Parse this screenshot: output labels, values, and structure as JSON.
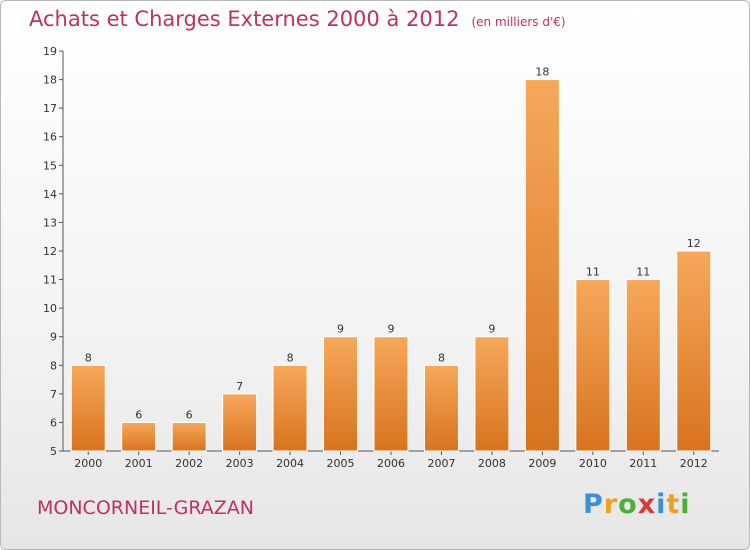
{
  "title": "Achats et Charges Externes 2000 à 2012",
  "unit": "(en milliers d'€)",
  "commune": "MONCORNEIL-GRAZAN",
  "logo": "Proxiti",
  "colors": {
    "title": "#c0315c",
    "bar_top": "#f6a85a",
    "bar_bottom": "#d8731f"
  },
  "chart_data": {
    "type": "bar",
    "categories": [
      "2000",
      "2001",
      "2002",
      "2003",
      "2004",
      "2005",
      "2006",
      "2007",
      "2008",
      "2009",
      "2010",
      "2011",
      "2012"
    ],
    "values": [
      8,
      6,
      6,
      7,
      8,
      9,
      9,
      8,
      9,
      18,
      11,
      11,
      12
    ],
    "ylim": [
      5,
      19
    ],
    "yticks": [
      5,
      6,
      7,
      8,
      9,
      10,
      11,
      12,
      13,
      14,
      15,
      16,
      17,
      18,
      19
    ],
    "grid": false,
    "title": "Achats et Charges Externes 2000 à 2012",
    "xlabel": "",
    "ylabel": ""
  }
}
